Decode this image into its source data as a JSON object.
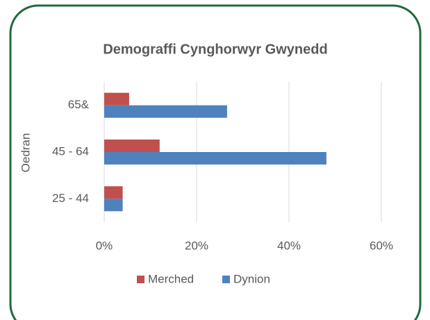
{
  "chart_data": {
    "type": "barh",
    "title": "Demograffi Cynghorwyr Gwynedd",
    "y_label": "Oedran",
    "categories": [
      "65&",
      "45 - 64",
      "25 - 44"
    ],
    "series": [
      {
        "name": "Merched",
        "color": "#c0504d",
        "values": [
          5.4,
          12,
          4
        ]
      },
      {
        "name": "Dynion",
        "color": "#4f81bd",
        "values": [
          26.6,
          48.1,
          4
        ]
      }
    ],
    "xlim": [
      0,
      60
    ],
    "xticks": [
      {
        "value": 0,
        "label": "0%"
      },
      {
        "value": 20,
        "label": "20%"
      },
      {
        "value": 40,
        "label": "40%"
      },
      {
        "value": 60,
        "label": "60%"
      }
    ],
    "grid": true,
    "legend": "bottom"
  }
}
